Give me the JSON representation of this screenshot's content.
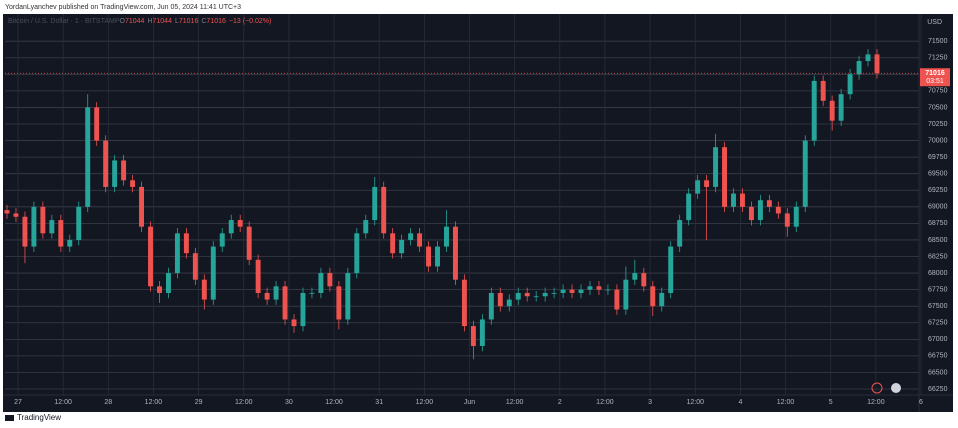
{
  "header": {
    "byline": "YordanLyanchev published on TradingView.com, Jun 05, 2024 11:41 UTC+3"
  },
  "chart_data": {
    "type": "candlestick",
    "symbol": "Bitcoin / U.S. Dollar · 1 · BITSTAMP",
    "legend_ohlc": [
      {
        "label": "O",
        "value": 71044
      },
      {
        "label": "H",
        "value": 71044
      },
      {
        "label": "L",
        "value": 71016
      },
      {
        "label": "C",
        "value": 71016
      }
    ],
    "legend_change": "−13 (−0.02%)",
    "currency": "USD",
    "up_color": "#26a69a",
    "down_color": "#ef5350",
    "ylim": [
      66160,
      71910
    ],
    "yticks": [
      66250,
      66500,
      66750,
      67000,
      67250,
      67500,
      67750,
      68000,
      68250,
      68500,
      68750,
      69000,
      69250,
      69500,
      69750,
      70000,
      70250,
      70500,
      70750,
      71000,
      71250,
      71500
    ],
    "grid": true,
    "time_labels": [
      "27",
      "12:00",
      "28",
      "12:00",
      "29",
      "12:00",
      "30",
      "12:00",
      "31",
      "12:00",
      "Jun",
      "12:00",
      "2",
      "12:00",
      "3",
      "12:00",
      "4",
      "12:00",
      "5",
      "12:00",
      "6"
    ],
    "last_price": 71016,
    "countdown": "03:51",
    "open": [
      68950,
      68900,
      68850,
      68400,
      69000,
      68600,
      68800,
      68400,
      68500,
      69000,
      70500,
      70000,
      69300,
      69700,
      69400,
      69300,
      68700,
      67800,
      67700,
      68000,
      68600,
      68300,
      67900,
      67600,
      68400,
      68600,
      68800,
      68700,
      68200,
      67700,
      67600,
      67800,
      67300,
      67200,
      67700,
      67700,
      68000,
      67800,
      67300,
      68000,
      68600,
      68800,
      69300,
      68600,
      68300,
      68500,
      68600,
      68400,
      68100,
      68400,
      68700,
      67900,
      67200,
      66900,
      67300,
      67700,
      67500,
      67600,
      67700,
      67650,
      67650,
      67700,
      67700,
      67750,
      67700,
      67750,
      67800,
      67750,
      67750,
      67450,
      67900,
      68000,
      67800,
      67500,
      67700,
      68400,
      68800,
      69200,
      69400,
      69300,
      69900,
      69000,
      69200,
      69000,
      68800,
      69100,
      69000,
      68900,
      68700,
      69000,
      70000,
      70900,
      70600,
      70300,
      70700,
      71000,
      71200,
      71300
    ],
    "high": [
      69030,
      68980,
      68930,
      69080,
      69080,
      68880,
      68880,
      68580,
      69080,
      70700,
      70580,
      70080,
      69780,
      69780,
      69480,
      69380,
      68780,
      67880,
      68080,
      68680,
      68680,
      68380,
      67980,
      68480,
      68680,
      68880,
      68880,
      68780,
      68280,
      67780,
      67880,
      67880,
      67380,
      67780,
      67780,
      68080,
      68080,
      67880,
      68080,
      68680,
      68880,
      69450,
      69380,
      68680,
      68580,
      68680,
      68680,
      68480,
      68480,
      68950,
      68780,
      67980,
      67280,
      67380,
      67780,
      67780,
      67680,
      67780,
      67780,
      67730,
      67780,
      67780,
      67830,
      67830,
      67830,
      67880,
      67880,
      67830,
      67830,
      68100,
      68200,
      68080,
      67880,
      67780,
      68480,
      68880,
      69280,
      69480,
      69480,
      70100,
      69980,
      69280,
      69280,
      69080,
      69180,
      69180,
      69080,
      68980,
      69080,
      70080,
      70980,
      70980,
      70680,
      70780,
      71080,
      71280,
      71380,
      71380
    ],
    "low": [
      68820,
      68770,
      68150,
      68320,
      68520,
      68520,
      68320,
      68320,
      68420,
      68920,
      69920,
      69220,
      69220,
      69320,
      69220,
      68620,
      67720,
      67550,
      67620,
      67920,
      68220,
      67820,
      67450,
      67520,
      68320,
      68520,
      68620,
      68120,
      67620,
      67520,
      67520,
      67220,
      67100,
      67120,
      67620,
      67620,
      67720,
      67150,
      67220,
      67920,
      68520,
      68720,
      68520,
      68220,
      68220,
      68420,
      68320,
      68020,
      68020,
      68320,
      67820,
      67120,
      66700,
      66820,
      67220,
      67420,
      67420,
      67520,
      67570,
      67570,
      67570,
      67620,
      67620,
      67620,
      67620,
      67670,
      67670,
      67670,
      67370,
      67370,
      67820,
      67720,
      67350,
      67420,
      67620,
      68320,
      68720,
      69120,
      68500,
      69220,
      68920,
      68920,
      68920,
      68720,
      68720,
      68920,
      68820,
      68550,
      68620,
      68920,
      69920,
      70520,
      70150,
      70220,
      70620,
      70920,
      71120,
      70936
    ],
    "close": [
      68900,
      68850,
      68400,
      69000,
      68600,
      68800,
      68400,
      68500,
      69000,
      70500,
      70000,
      69300,
      69700,
      69400,
      69300,
      68700,
      67800,
      67700,
      68000,
      68600,
      68300,
      67900,
      67600,
      68400,
      68600,
      68800,
      68700,
      68200,
      67700,
      67600,
      67800,
      67300,
      67200,
      67700,
      67700,
      68000,
      67800,
      67300,
      68000,
      68600,
      68800,
      69300,
      68600,
      68300,
      68500,
      68600,
      68400,
      68100,
      68400,
      68700,
      67900,
      67200,
      66900,
      67300,
      67700,
      67500,
      67600,
      67700,
      67650,
      67650,
      67700,
      67700,
      67750,
      67700,
      67750,
      67800,
      67750,
      67750,
      67450,
      67900,
      68000,
      67800,
      67500,
      67700,
      68400,
      68800,
      69200,
      69400,
      69300,
      69900,
      69000,
      69200,
      69000,
      68800,
      69100,
      69000,
      68900,
      68700,
      69000,
      70000,
      70900,
      70600,
      70300,
      70700,
      71000,
      71200,
      71300,
      71016
    ]
  },
  "footer": {
    "brand": "TradingView"
  }
}
